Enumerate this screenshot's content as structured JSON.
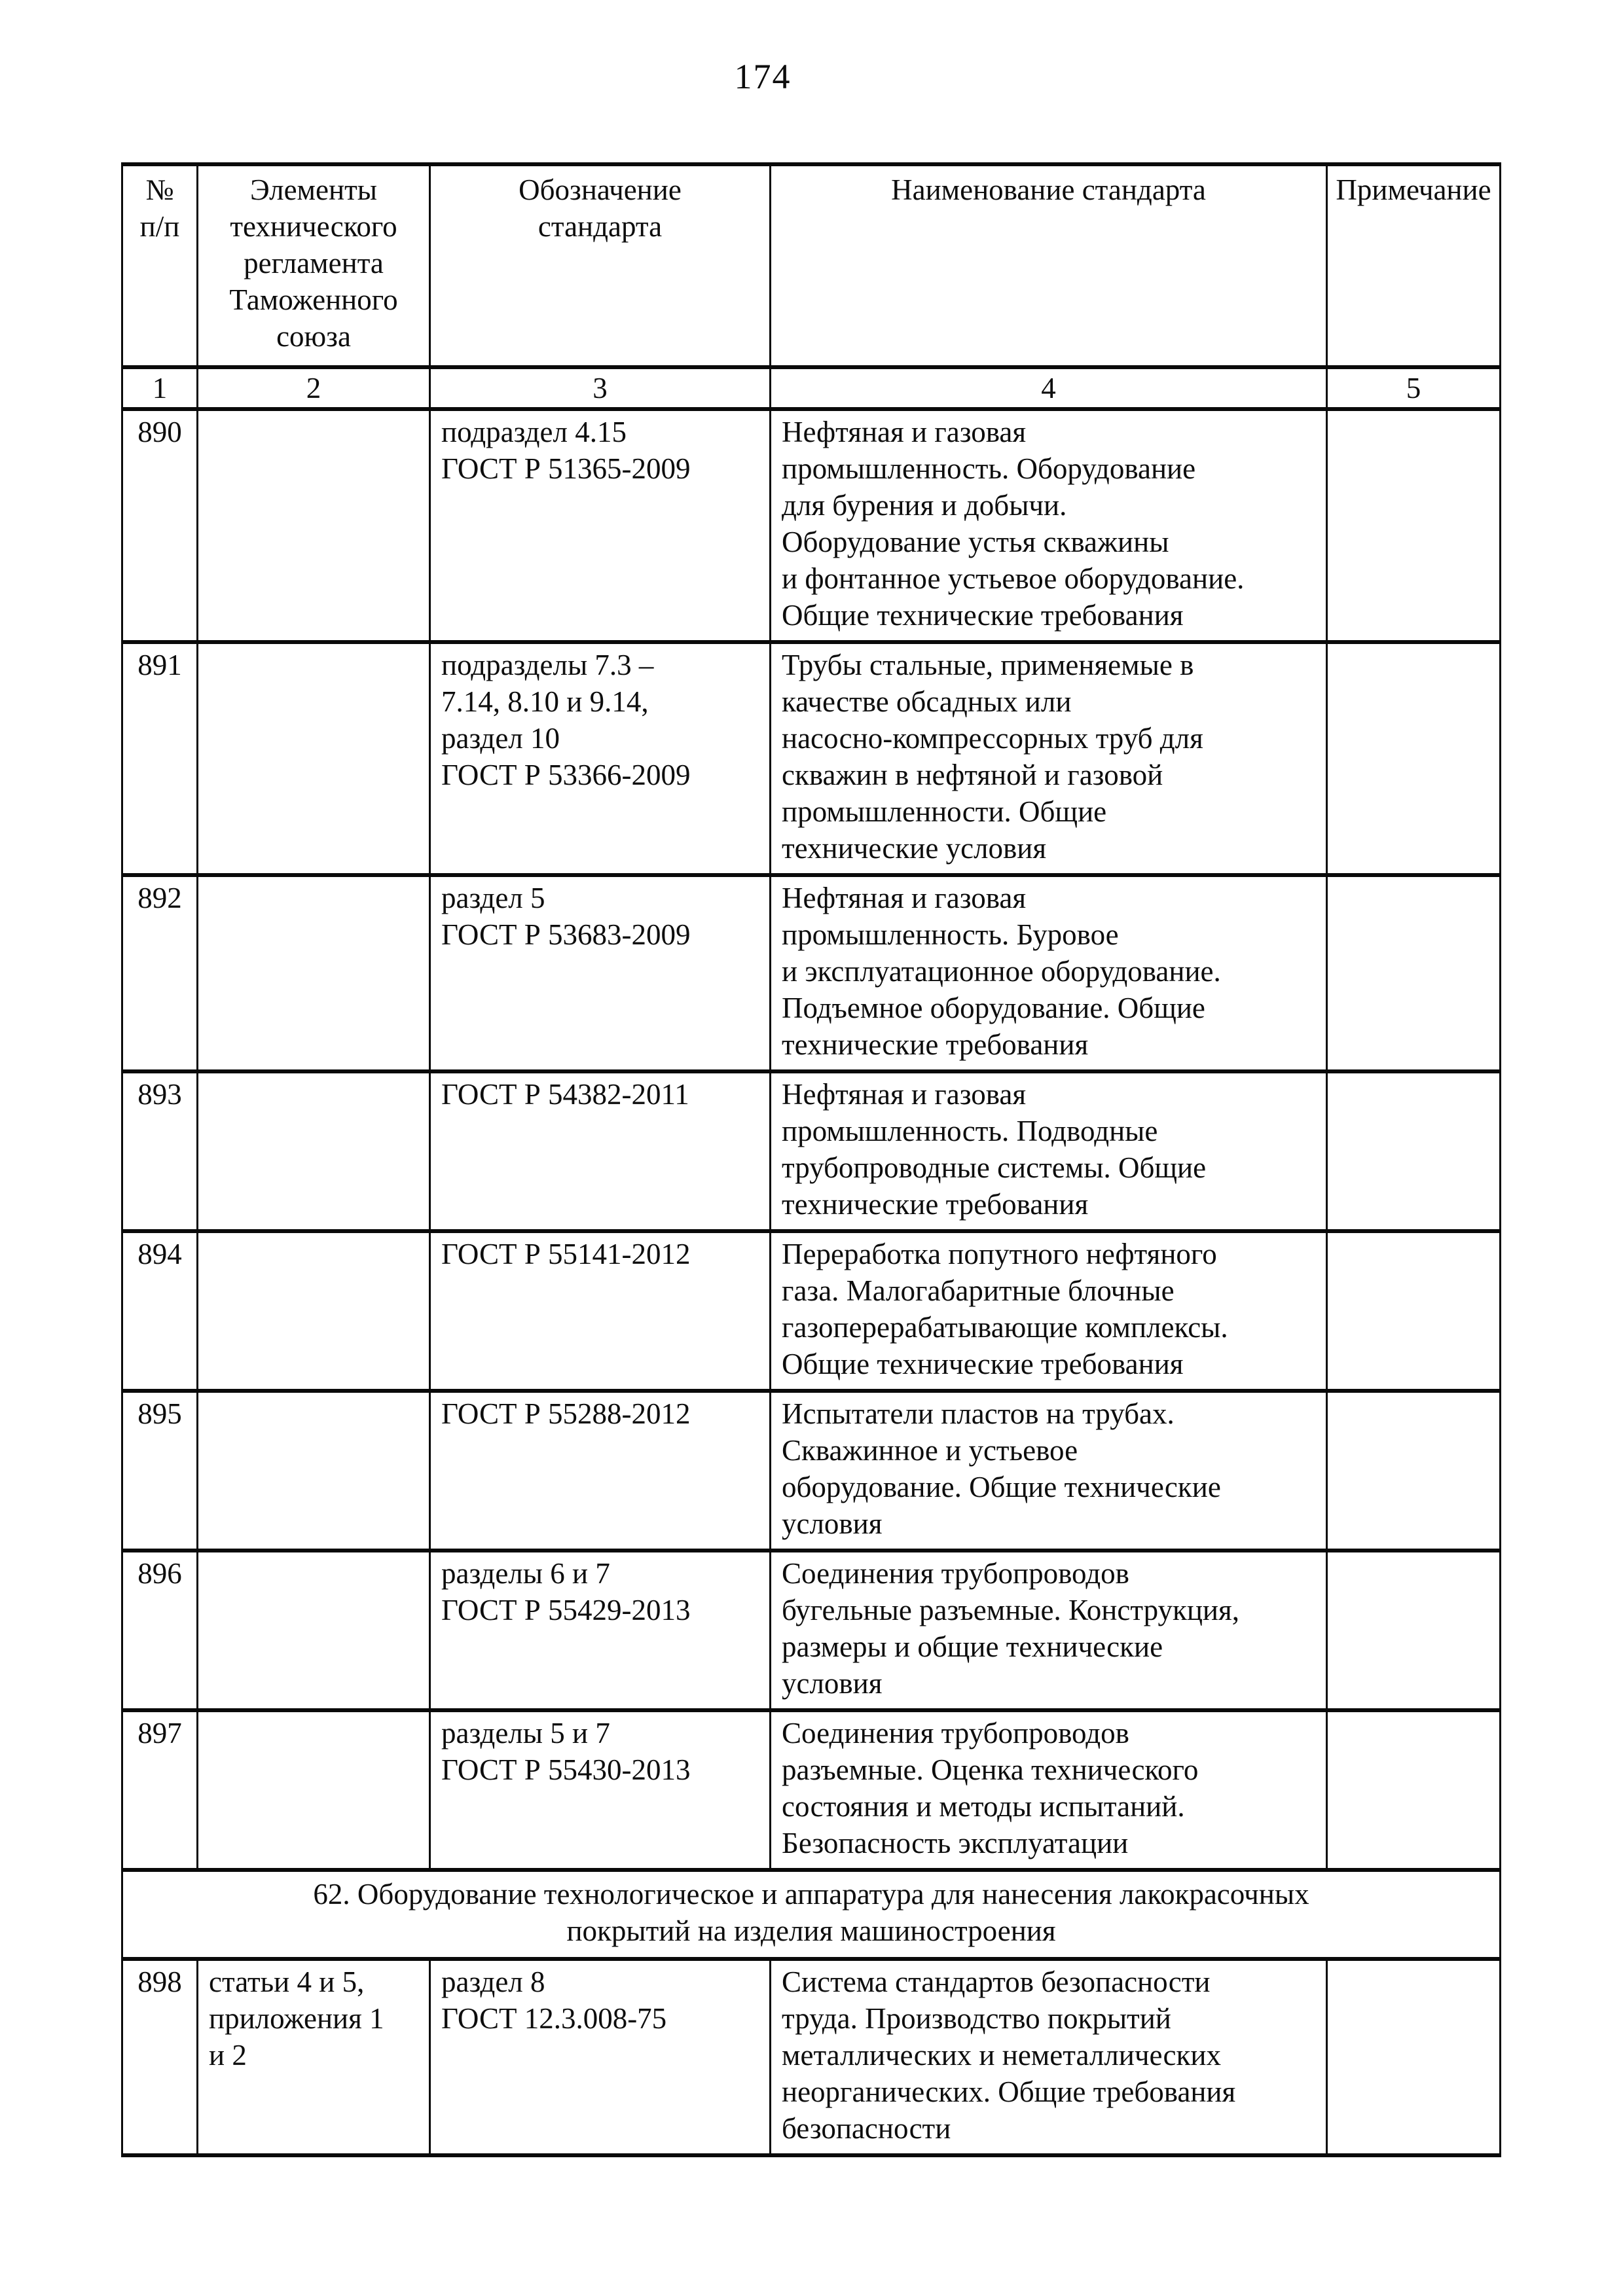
{
  "page_number": "174",
  "table": {
    "headers": {
      "num": "№\nп/п",
      "elements": "Элементы\nтехнического\nрегламента\nТаможенного\nсоюза",
      "designation": "Обозначение\nстандарта",
      "name": "Наименование стандарта",
      "note": "Примечание"
    },
    "column_numbers": [
      "1",
      "2",
      "3",
      "4",
      "5"
    ],
    "rows": [
      {
        "num": "890",
        "elements": "",
        "designation": "подраздел 4.15\nГОСТ Р 51365-2009",
        "name": "Нефтяная и газовая\nпромышленность. Оборудование\nдля бурения и добычи.\nОборудование устья скважины\nи фонтанное устьевое оборудование.\nОбщие технические требования",
        "note": ""
      },
      {
        "num": "891",
        "elements": "",
        "designation": "подразделы 7.3 –\n7.14, 8.10 и 9.14,\nраздел 10\nГОСТ Р 53366-2009",
        "name": "Трубы стальные, применяемые в\nкачестве обсадных или\nнасосно-компрессорных труб для\nскважин в нефтяной и газовой\nпромышленности. Общие\nтехнические условия",
        "note": ""
      },
      {
        "num": "892",
        "elements": "",
        "designation": "раздел 5\nГОСТ Р 53683-2009",
        "name": "Нефтяная и газовая\nпромышленность. Буровое\nи эксплуатационное оборудование.\nПодъемное оборудование. Общие\nтехнические требования",
        "note": ""
      },
      {
        "num": "893",
        "elements": "",
        "designation": "ГОСТ Р 54382-2011",
        "name": "Нефтяная и газовая\nпромышленность. Подводные\nтрубопроводные системы. Общие\nтехнические требования",
        "note": ""
      },
      {
        "num": "894",
        "elements": "",
        "designation": "ГОСТ Р 55141-2012",
        "name": "Переработка попутного нефтяного\nгаза. Малогабаритные блочные\nгазоперерабатывающие комплексы.\nОбщие технические требования",
        "note": ""
      },
      {
        "num": "895",
        "elements": "",
        "designation": "ГОСТ Р 55288-2012",
        "name": "Испытатели пластов на трубах.\nСкважинное и устьевое\nоборудование. Общие технические\nусловия",
        "note": ""
      },
      {
        "num": "896",
        "elements": "",
        "designation": "разделы 6 и 7\nГОСТ Р 55429-2013",
        "name": "Соединения трубопроводов\nбугельные разъемные. Конструкция,\nразмеры и общие технические\nусловия",
        "note": ""
      },
      {
        "num": "897",
        "elements": "",
        "designation": "разделы 5 и 7\nГОСТ Р 55430-2013",
        "name": "Соединения трубопроводов\nразъемные. Оценка технического\nсостояния и методы испытаний.\nБезопасность эксплуатации",
        "note": ""
      },
      {
        "num": "898",
        "elements": "статьи 4 и 5,\nприложения 1\nи 2",
        "designation": "раздел 8\nГОСТ 12.3.008-75",
        "name": "Система стандартов безопасности\nтруда. Производство покрытий\nметаллических и неметаллических\nнеорганических. Общие требования\nбезопасности",
        "note": ""
      }
    ],
    "section_header": "62. Оборудование технологическое и аппаратура для нанесения лакокрасочных\nпокрытий на изделия машиностроения"
  }
}
